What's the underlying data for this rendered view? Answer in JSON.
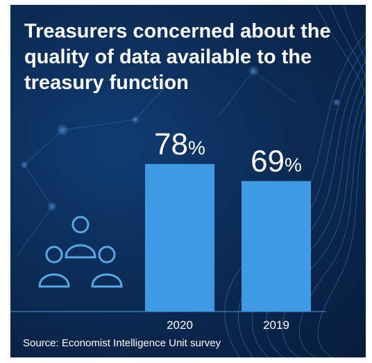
{
  "title": "Treasurers concerned about the quality of data available to the treasury function",
  "source": "Source: Economist Intelligence Unit survey",
  "icon": "people-group-icon",
  "colors": {
    "background": "#0b2c57",
    "bar": "#3d9be3",
    "text": "#ffffff",
    "icon": "#59a8e6"
  },
  "chart_data": {
    "type": "bar",
    "categories": [
      "2020",
      "2019"
    ],
    "values": [
      78,
      69
    ],
    "value_suffix": "%",
    "title": "Treasurers concerned about the quality of data available to the treasury function",
    "xlabel": "",
    "ylabel": "",
    "ylim": [
      0,
      100
    ],
    "grid": false
  }
}
